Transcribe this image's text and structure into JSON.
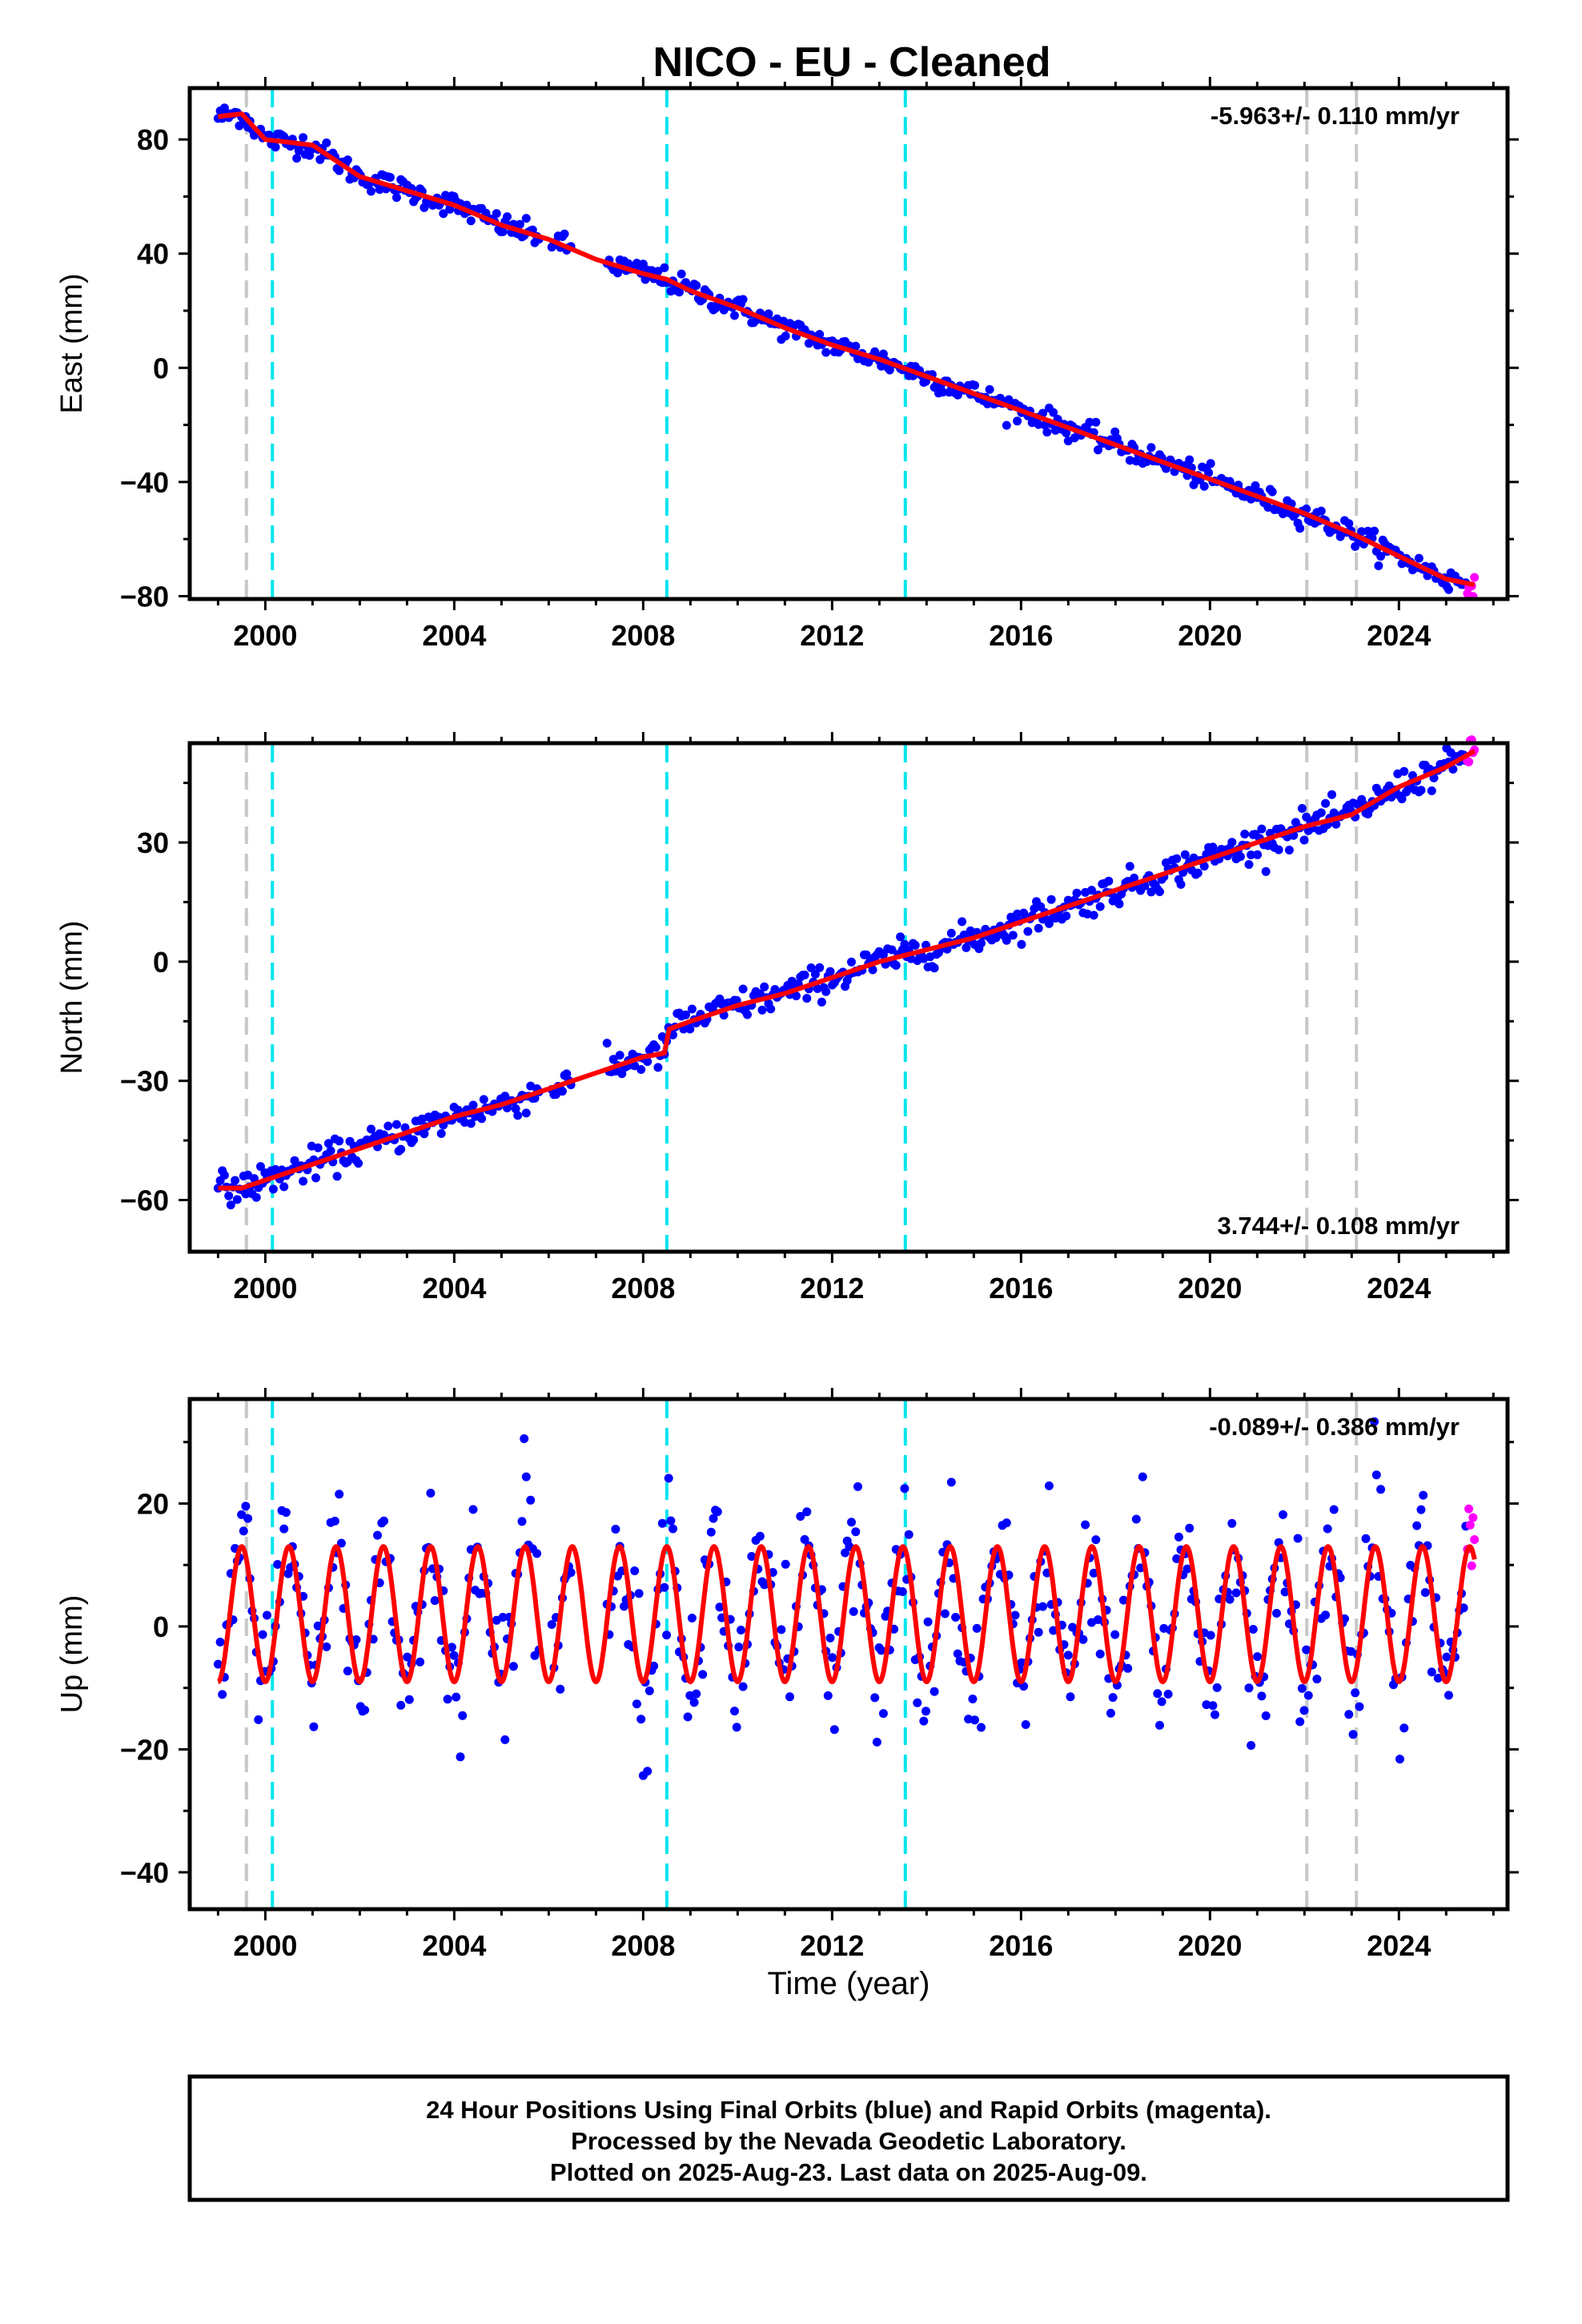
{
  "chart_data": {
    "type": "scatter",
    "title": "NICO  - EU - Cleaned",
    "xlabel": "Time (year)",
    "xlim": [
      1998.4,
      2026.3
    ],
    "xticks": [
      2000,
      2004,
      2008,
      2012,
      2016,
      2020,
      2024
    ],
    "colors": {
      "final": "#0000ff",
      "rapid": "#ff00ff",
      "model": "#ff0000",
      "equipment_change": "#c8c8c8",
      "earthquake": "#00e5ee"
    },
    "vertical_lines": [
      {
        "x": 1999.6,
        "kind": "equipment_change"
      },
      {
        "x": 2000.15,
        "kind": "earthquake"
      },
      {
        "x": 2008.5,
        "kind": "earthquake"
      },
      {
        "x": 2013.55,
        "kind": "earthquake"
      },
      {
        "x": 2022.05,
        "kind": "equipment_change"
      },
      {
        "x": 2023.1,
        "kind": "equipment_change"
      }
    ],
    "panels": [
      {
        "name": "east",
        "ylabel": "East (mm)",
        "ylim": [
          -81,
          98
        ],
        "yticks": [
          -80,
          -40,
          0,
          40,
          80
        ],
        "rate": "-5.963+/- 0.110 mm/yr",
        "rate_position": "top-right",
        "model": [
          [
            1999.0,
            88
          ],
          [
            1999.5,
            89
          ],
          [
            2000.0,
            80
          ],
          [
            2000.5,
            79
          ],
          [
            2001.0,
            78
          ],
          [
            2002.0,
            67
          ],
          [
            2003.0,
            62
          ],
          [
            2004.0,
            57
          ],
          [
            2005.0,
            50
          ],
          [
            2006.0,
            45
          ],
          [
            2007.0,
            38
          ],
          [
            2008.0,
            33
          ],
          [
            2008.5,
            31
          ],
          [
            2009.0,
            27
          ],
          [
            2010.0,
            21
          ],
          [
            2011.0,
            14
          ],
          [
            2012.0,
            8
          ],
          [
            2013.0,
            3
          ],
          [
            2014.0,
            -3
          ],
          [
            2015.0,
            -9
          ],
          [
            2016.0,
            -15
          ],
          [
            2017.0,
            -21
          ],
          [
            2018.0,
            -27
          ],
          [
            2019.0,
            -33
          ],
          [
            2020.0,
            -39
          ],
          [
            2021.0,
            -45
          ],
          [
            2022.0,
            -51
          ],
          [
            2023.0,
            -58
          ],
          [
            2024.0,
            -66
          ],
          [
            2025.0,
            -74
          ],
          [
            2025.6,
            -76
          ]
        ]
      },
      {
        "name": "north",
        "ylabel": "North (mm)",
        "ylim": [
          -73,
          55
        ],
        "yticks": [
          -60,
          -30,
          0,
          30
        ],
        "rate": "3.744+/- 0.108 mm/yr",
        "rate_position": "bottom-right",
        "model": [
          [
            1999.0,
            -57
          ],
          [
            1999.5,
            -57
          ],
          [
            2000.0,
            -55
          ],
          [
            2001.0,
            -51
          ],
          [
            2002.0,
            -47
          ],
          [
            2003.0,
            -43
          ],
          [
            2004.0,
            -39
          ],
          [
            2005.0,
            -36
          ],
          [
            2006.0,
            -32
          ],
          [
            2007.0,
            -28
          ],
          [
            2008.0,
            -24
          ],
          [
            2008.45,
            -23
          ],
          [
            2008.55,
            -17
          ],
          [
            2009.0,
            -15
          ],
          [
            2010.0,
            -11
          ],
          [
            2011.0,
            -8
          ],
          [
            2012.0,
            -4
          ],
          [
            2013.0,
            0
          ],
          [
            2014.0,
            3
          ],
          [
            2015.0,
            6
          ],
          [
            2016.0,
            10
          ],
          [
            2017.0,
            14
          ],
          [
            2018.0,
            18
          ],
          [
            2019.0,
            22
          ],
          [
            2020.0,
            26
          ],
          [
            2021.0,
            30
          ],
          [
            2022.0,
            34
          ],
          [
            2023.0,
            37
          ],
          [
            2024.0,
            44
          ],
          [
            2025.0,
            49
          ],
          [
            2025.6,
            53
          ]
        ]
      },
      {
        "name": "up",
        "ylabel": "Up (mm)",
        "ylim": [
          -46,
          37
        ],
        "yticks": [
          -40,
          -20,
          0,
          20
        ],
        "rate": "-0.089+/- 0.386 mm/yr",
        "rate_position": "top-right",
        "model_seasonal_amplitude_mm": [
          -9,
          13
        ],
        "model_phase_peak_fraction": 0.5,
        "model_x_range": [
          1999.0,
          2025.6
        ]
      }
    ],
    "footer": [
      "24 Hour Positions Using Final Orbits (blue) and Rapid Orbits (magenta).",
      "Processed by the Nevada Geodetic Laboratory.",
      "Plotted on 2025-Aug-23. Last data on 2025-Aug-09."
    ]
  }
}
